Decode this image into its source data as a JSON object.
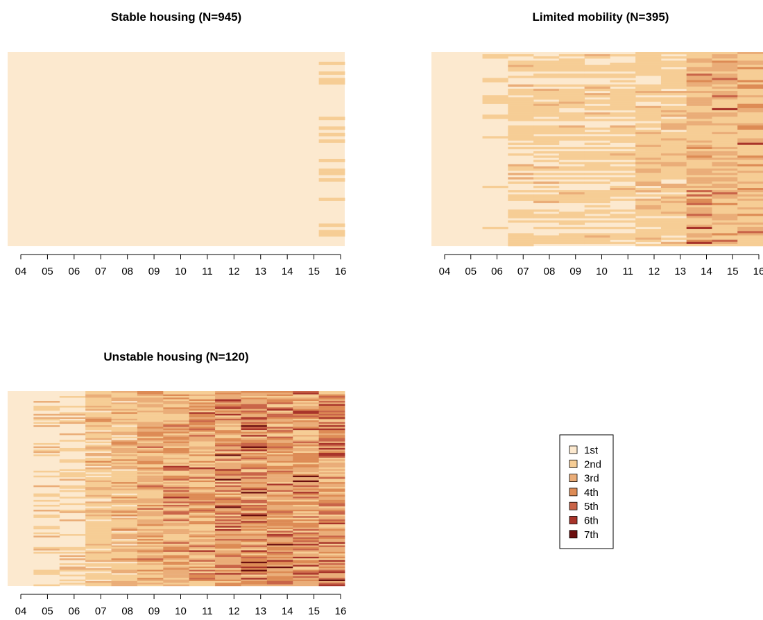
{
  "chart_data": [
    {
      "type": "heatmap",
      "title": "Stable housing (N=945)",
      "x_tick_labels": [
        "04",
        "05",
        "06",
        "07",
        "08",
        "09",
        "10",
        "11",
        "12",
        "13",
        "14",
        "15",
        "16"
      ],
      "n_sequences": 945,
      "rows_depicted": 60,
      "sequence_pattern": "Nearly all rows remain in state 1st across 04-16; a few rows change to 2nd in 16.",
      "dominant_state_by_year": [
        "1st",
        "1st",
        "1st",
        "1st",
        "1st",
        "1st",
        "1st",
        "1st",
        "1st",
        "1st",
        "1st",
        "1st",
        "1st"
      ],
      "seed": 11
    },
    {
      "type": "heatmap",
      "title": "Limited mobility (N=395)",
      "x_tick_labels": [
        "04",
        "05",
        "06",
        "07",
        "08",
        "09",
        "10",
        "11",
        "12",
        "13",
        "14",
        "15",
        "16"
      ],
      "n_sequences": 395,
      "rows_depicted": 90,
      "sequence_pattern": "1st in 04-06, then a mix of 1st and 2nd in 07-11 moving to 2nd-3rd in 12-16, with isolated 4th-6th.",
      "dominant_state_by_year": [
        "1st",
        "1st",
        "1st",
        "2nd",
        "2nd",
        "2nd",
        "2nd",
        "2nd",
        "2nd",
        "2nd",
        "3rd",
        "3rd",
        "3rd"
      ],
      "seed": 29
    },
    {
      "type": "heatmap",
      "title": "Unstable housing (N=120)",
      "x_tick_labels": [
        "04",
        "05",
        "06",
        "07",
        "08",
        "09",
        "10",
        "11",
        "12",
        "13",
        "14",
        "15",
        "16"
      ],
      "n_sequences": 120,
      "rows_depicted": 120,
      "sequence_pattern": "1st in 04-06 with some 2nd-3rd, then 2nd-4th in 07-11 and 3rd-7th in 12-16.",
      "dominant_state_by_year": [
        "1st",
        "1st",
        "1st",
        "2nd",
        "2nd",
        "3rd",
        "3rd",
        "3rd",
        "3rd",
        "3rd",
        "4th",
        "4th",
        "4th"
      ],
      "seed": 53
    }
  ],
  "legend": {
    "entries": [
      {
        "label": "1st",
        "color": "#fce9cf"
      },
      {
        "label": "2nd",
        "color": "#f6cd95"
      },
      {
        "label": "3rd",
        "color": "#eaad78"
      },
      {
        "label": "4th",
        "color": "#dd8b55"
      },
      {
        "label": "5th",
        "color": "#c96448"
      },
      {
        "label": "6th",
        "color": "#a8342a"
      },
      {
        "label": "7th",
        "color": "#6b0e0e"
      }
    ]
  }
}
